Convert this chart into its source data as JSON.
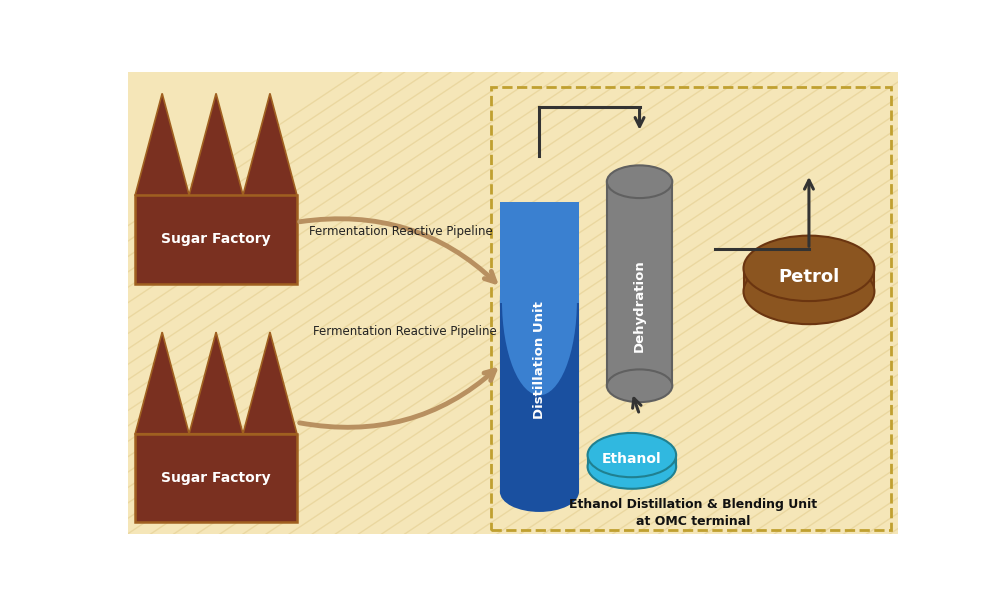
{
  "bg_color": "#f5e6b8",
  "bg_stripe_color": "#e8d49a",
  "factory_color": "#7a3020",
  "factory_border": "#a06020",
  "factory_text_color": "#ffffff",
  "distill_color": "#3a80d0",
  "distill_dark": "#1a50a0",
  "dehydration_color": "#808080",
  "dehydration_dark": "#606060",
  "ethanol_color": "#30b8e0",
  "petrol_color": "#8b5520",
  "pipeline_color": "#b89060",
  "arrow_color": "#333333",
  "dashed_box_color": "#c0a030",
  "title_color": "#111111",
  "sugar_factory_label": "Sugar Factory",
  "distill_label": "Distillation Unit",
  "dehydration_label": "Dehydration",
  "ethanol_label": "Ethanol",
  "petrol_label": "Petrol",
  "pipeline_label1": "Fermentation Reactive Pipeline",
  "pipeline_label2": "Fermentation Reactive Pipeline",
  "box_label_line1": "Ethanol Distillation & Blending Unit",
  "box_label_line2": "at OMC terminal"
}
